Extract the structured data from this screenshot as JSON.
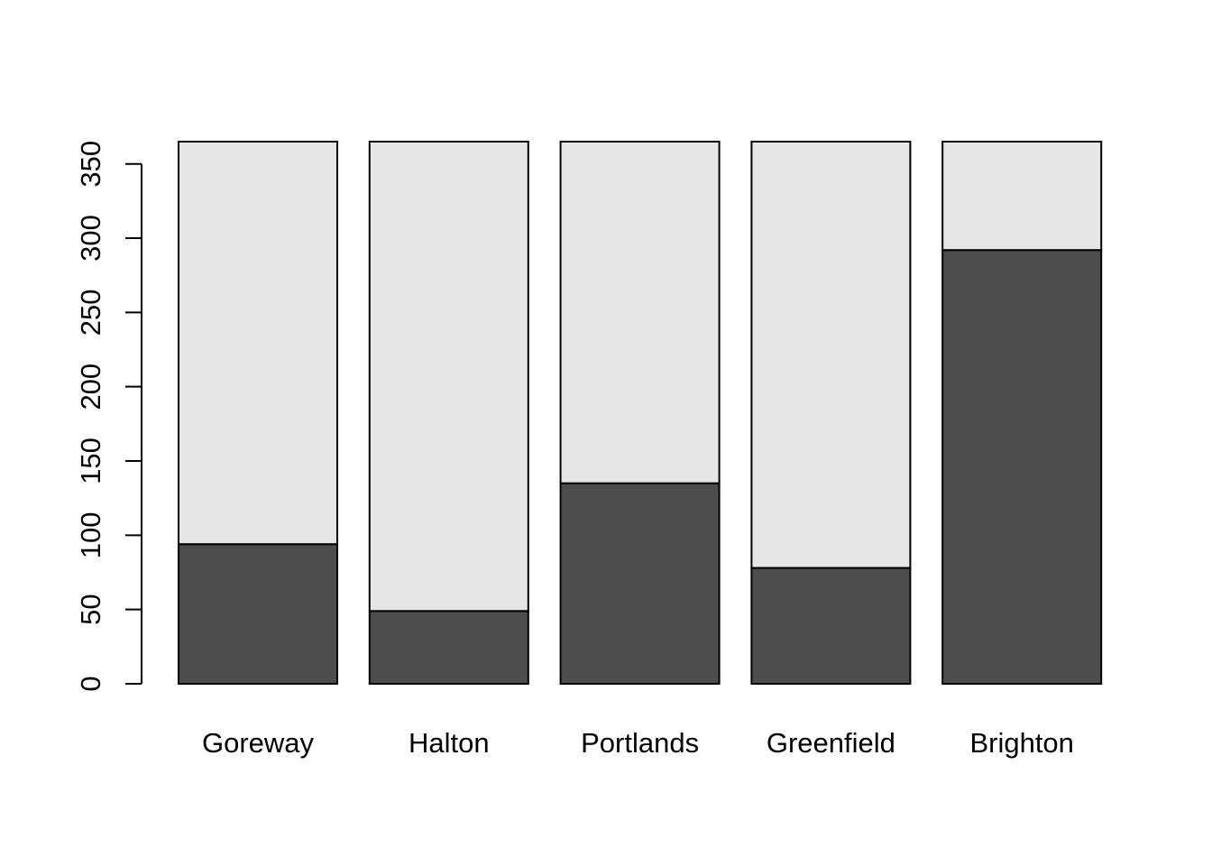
{
  "chart_data": {
    "type": "bar",
    "stacked": true,
    "categories": [
      "Goreway",
      "Halton",
      "Portlands",
      "Greenfield",
      "Brighton"
    ],
    "series": [
      {
        "values": [
          94,
          49,
          135,
          78,
          292
        ]
      },
      {
        "values": [
          271,
          316,
          230,
          287,
          73
        ]
      }
    ],
    "ylim": [
      0,
      365
    ],
    "yticks": [
      0,
      50,
      100,
      150,
      200,
      250,
      300,
      350
    ],
    "colors": [
      "#4d4d4d",
      "#e6e6e6"
    ],
    "grid": false,
    "legend": "none"
  }
}
